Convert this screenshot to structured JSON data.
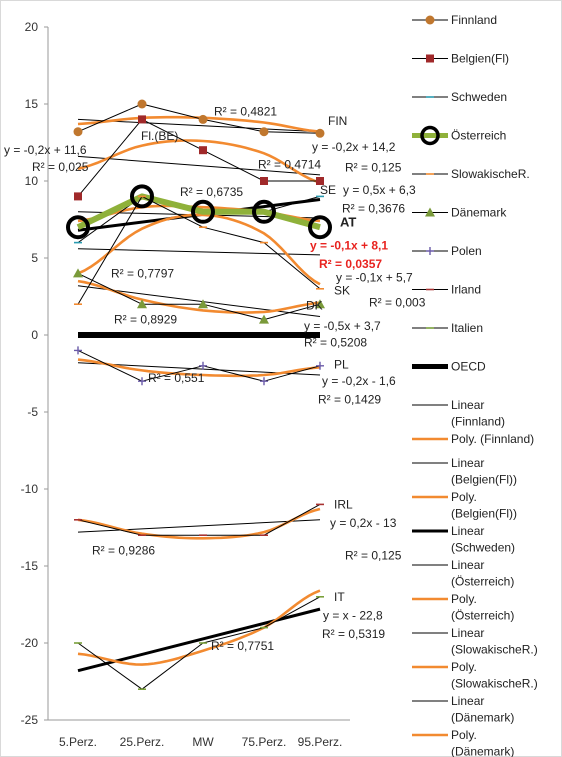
{
  "chart_data": {
    "type": "line",
    "categories": [
      "5.Perz.",
      "25.Perz.",
      "MW",
      "75.Perz.",
      "95.Perz."
    ],
    "ylim": [
      -25,
      20
    ],
    "y_ticks": [
      "20",
      "15",
      "10",
      "5",
      "0",
      "-5",
      "-10",
      "-15",
      "-20",
      "-25"
    ],
    "grid": false,
    "legend_position": "right",
    "series": [
      {
        "name": "Finnland",
        "values": [
          13.2,
          15,
          14,
          13.2,
          13.1
        ],
        "color": "#c0772e",
        "marker": "circle"
      },
      {
        "name": "Belgien(Fl)",
        "values": [
          9,
          14,
          12,
          10,
          10
        ],
        "color": "#a0292a",
        "marker": "square"
      },
      {
        "name": "Schweden",
        "values": [
          6,
          9,
          8,
          8,
          9
        ],
        "color": "#2a9bb0",
        "marker": "dash"
      },
      {
        "name": "Österreich",
        "values": [
          7,
          9,
          8,
          8,
          7
        ],
        "color": "#8fb13a",
        "marker": "ring"
      },
      {
        "name": "SlowakischeR.",
        "values": [
          2,
          9,
          7,
          6,
          3
        ],
        "color": "#f28a30",
        "marker": "dash"
      },
      {
        "name": "Dänemark",
        "values": [
          4,
          2,
          2,
          1,
          2
        ],
        "color": "#7a9a3a",
        "marker": "triangle"
      },
      {
        "name": "Polen",
        "values": [
          -1,
          -3,
          -2,
          -3,
          -2
        ],
        "color": "#6a5aa8",
        "marker": "plus"
      },
      {
        "name": "Irland",
        "values": [
          -12,
          -13,
          -13,
          -13,
          -11
        ],
        "color": "#a83232",
        "marker": "dash"
      },
      {
        "name": "Italien",
        "values": [
          -20,
          -23,
          -20,
          -19,
          -17
        ],
        "color": "#7aa03a",
        "marker": "dash"
      },
      {
        "name": "OECD",
        "values": [
          0,
          0,
          0,
          0,
          0
        ],
        "color": "#000000",
        "marker": "none"
      }
    ],
    "legend": [
      {
        "label": "Finnland",
        "kind": "series",
        "color": "#c0772e",
        "marker": "circle"
      },
      {
        "label": "Belgien(Fl)",
        "kind": "series",
        "color": "#a0292a",
        "marker": "square"
      },
      {
        "label": "Schweden",
        "kind": "series",
        "color": "#2a9bb0",
        "marker": "dash"
      },
      {
        "label": "Österreich",
        "kind": "series",
        "color": "#8fb13a",
        "marker": "ring"
      },
      {
        "label": "SlowakischeR.",
        "kind": "series",
        "color": "#f28a30",
        "marker": "dash"
      },
      {
        "label": "Dänemark",
        "kind": "series",
        "color": "#7a9a3a",
        "marker": "triangle"
      },
      {
        "label": "Polen",
        "kind": "series",
        "color": "#6a5aa8",
        "marker": "plus"
      },
      {
        "label": "Irland",
        "kind": "series",
        "color": "#a83232",
        "marker": "dash"
      },
      {
        "label": "Italien",
        "kind": "series",
        "color": "#7aa03a",
        "marker": "dash"
      },
      {
        "label": "OECD",
        "kind": "oecd",
        "color": "#000000",
        "marker": "none"
      },
      {
        "label": "Linear (Finnland)",
        "lines": [
          "Linear",
          "(Finnland)"
        ],
        "kind": "linear",
        "color": "#000000"
      },
      {
        "label": "Poly. (Finnland)",
        "lines": [
          "Poly. (Finnland)"
        ],
        "kind": "poly",
        "color": "#f28a30"
      },
      {
        "label": "Linear (Belgien(Fl))",
        "lines": [
          "Linear",
          "(Belgien(Fl))"
        ],
        "kind": "linear",
        "color": "#000000"
      },
      {
        "label": "Poly. (Belgien(Fl))",
        "lines": [
          "Poly.",
          "(Belgien(Fl))"
        ],
        "kind": "poly",
        "color": "#f28a30"
      },
      {
        "label": "Linear (Schweden)",
        "lines": [
          "Linear",
          "(Schweden)"
        ],
        "kind": "linear-bold",
        "color": "#000000"
      },
      {
        "label": "Linear (Österreich)",
        "lines": [
          "Linear",
          "(Österreich)"
        ],
        "kind": "linear",
        "color": "#000000"
      },
      {
        "label": "Poly. (Österreich)",
        "lines": [
          "Poly.",
          "(Österreich)"
        ],
        "kind": "poly",
        "color": "#f28a30"
      },
      {
        "label": "Linear (SlowakischeR.)",
        "lines": [
          "Linear",
          "(SlowakischeR.)"
        ],
        "kind": "linear",
        "color": "#000000"
      },
      {
        "label": "Poly. (SlowakischeR.)",
        "lines": [
          "Poly.",
          "(SlowakischeR.)"
        ],
        "kind": "poly",
        "color": "#f28a30"
      },
      {
        "label": "Linear (Dänemark)",
        "lines": [
          "Linear",
          "(Dänemark)"
        ],
        "kind": "linear",
        "color": "#000000"
      },
      {
        "label": "Poly. (Dänemark)",
        "lines": [
          "Poly.",
          "(Dänemark)"
        ],
        "kind": "poly",
        "color": "#f28a30"
      }
    ],
    "trendlines": [
      {
        "series": "Finnland",
        "kind": "linear",
        "from": 14.0,
        "to": 13.2
      },
      {
        "series": "Finnland",
        "kind": "poly",
        "values": [
          13.7,
          14.1,
          14.1,
          13.8,
          13.2
        ]
      },
      {
        "series": "Belgien(Fl)",
        "kind": "linear",
        "from": 11.6,
        "to": 10.4
      },
      {
        "series": "Belgien(Fl)",
        "kind": "poly",
        "values": [
          10.8,
          12.3,
          12.6,
          11.8,
          9.9
        ]
      },
      {
        "series": "Schweden",
        "kind": "linear-bold",
        "from": 6.8,
        "to": 8.8
      },
      {
        "series": "Österreich",
        "kind": "linear",
        "from": 8.0,
        "to": 7.6
      },
      {
        "series": "Österreich",
        "kind": "poly",
        "values": [
          7.4,
          8.3,
          8.3,
          8.0,
          7.4
        ]
      },
      {
        "series": "SlowakischeR.",
        "kind": "linear",
        "from": 5.6,
        "to": 5.2
      },
      {
        "series": "SlowakischeR.",
        "kind": "poly",
        "values": [
          4.0,
          6.9,
          7.8,
          6.6,
          3.3
        ]
      },
      {
        "series": "Dänemark",
        "kind": "linear",
        "from": 3.2,
        "to": 1.2
      },
      {
        "series": "Dänemark",
        "kind": "poly",
        "values": [
          3.5,
          2.3,
          1.6,
          1.5,
          2.1
        ]
      },
      {
        "series": "Polen",
        "kind": "linear",
        "from": -1.8,
        "to": -2.6
      },
      {
        "series": "Polen",
        "kind": "poly",
        "values": [
          -1.6,
          -2.3,
          -2.6,
          -2.6,
          -2.1
        ]
      },
      {
        "series": "Irland",
        "kind": "linear",
        "from": -12.8,
        "to": -12.0
      },
      {
        "series": "Irland",
        "kind": "poly",
        "values": [
          -12.0,
          -12.9,
          -13.2,
          -12.8,
          -11.3
        ]
      },
      {
        "series": "Italien",
        "kind": "linear-bold",
        "from": -21.8,
        "to": -17.8
      },
      {
        "series": "Italien",
        "kind": "poly",
        "values": [
          -20.7,
          -21.4,
          -20.5,
          -19.0,
          -16.6
        ]
      }
    ],
    "annotations": [
      {
        "text": "R² = 0,4821",
        "x": 3.0,
        "y": 14.5
      },
      {
        "text": "FIN",
        "x": 4.0,
        "y": 13.9
      },
      {
        "text": "y = -0,2x + 14,2",
        "x": 4.0,
        "y": 13.0
      },
      {
        "text": "R² = 0,125",
        "x": 4.0,
        "y": 11.8
      },
      {
        "text": "y = -0,2x + 11,6",
        "x": 0.0,
        "y": 12.0
      },
      {
        "text": "R² = 0,025",
        "x": 0.0,
        "y": 10.9
      },
      {
        "text": "Fl.(BE)",
        "x": 1.0,
        "y": 12.0
      },
      {
        "text": "R² = 0,4714",
        "x": 3.0,
        "y": 11.6
      },
      {
        "text": "R² = 0,6735",
        "x": 2.0,
        "y": 9.3
      },
      {
        "text": "SE",
        "x": 4.0,
        "y": 9.4
      },
      {
        "text": "y = 0,5x + 6,3",
        "x": 4.0,
        "y": 9.4
      },
      {
        "text": "R² = 0,3676",
        "x": 4.0,
        "y": 8.2
      },
      {
        "text": "AT",
        "x": 4.0,
        "y": 7.3,
        "style": "bold"
      },
      {
        "text": "y = -0,1x + 8,1",
        "x": 4.0,
        "y": 5.8,
        "style": "red"
      },
      {
        "text": "R² = 0,0357",
        "x": 4.0,
        "y": 4.6,
        "style": "red"
      },
      {
        "text": "R² = 0,7797",
        "x": 1.0,
        "y": 4.0
      },
      {
        "text": "SK",
        "x": 4.0,
        "y": 2.9
      },
      {
        "text": "y = -0,1x + 5,7",
        "x": 4.0,
        "y": 3.2
      },
      {
        "text": "DK",
        "x": 4.0,
        "y": 1.9
      },
      {
        "text": "R² = 0,003",
        "x": 4.0,
        "y": 2.1
      },
      {
        "text": "R² = 0,8929",
        "x": 1.0,
        "y": 1.0
      },
      {
        "text": "y = -0,5x + 3,7",
        "x": 4.0,
        "y": 0.6
      },
      {
        "text": "R² = 0,5208",
        "x": 4.0,
        "y": -0.5
      },
      {
        "text": "PL",
        "x": 4.0,
        "y": -1.9
      },
      {
        "text": "R² = 0,551",
        "x": 1.0,
        "y": -2.8
      },
      {
        "text": "y = -0,2x - 1,6",
        "x": 4.0,
        "y": -3.0
      },
      {
        "text": "R² = 0,1429",
        "x": 4.0,
        "y": -4.2
      },
      {
        "text": "IRL",
        "x": 4.0,
        "y": -11.0
      },
      {
        "text": "y = 0,2x - 13",
        "x": 4.0,
        "y": -12.2
      },
      {
        "text": "R² = 0,125",
        "x": 4.0,
        "y": -13.4
      },
      {
        "text": "R² = 0,9286",
        "x": 0.0,
        "y": -14.0
      },
      {
        "text": "IT",
        "x": 4.0,
        "y": -17.0
      },
      {
        "text": "y = x - 22,8",
        "x": 4.0,
        "y": -18.2
      },
      {
        "text": "R² = 0,5319",
        "x": 4.0,
        "y": -19.4
      },
      {
        "text": "R² = 0,7751",
        "x": 2.0,
        "y": -20.2
      }
    ]
  }
}
